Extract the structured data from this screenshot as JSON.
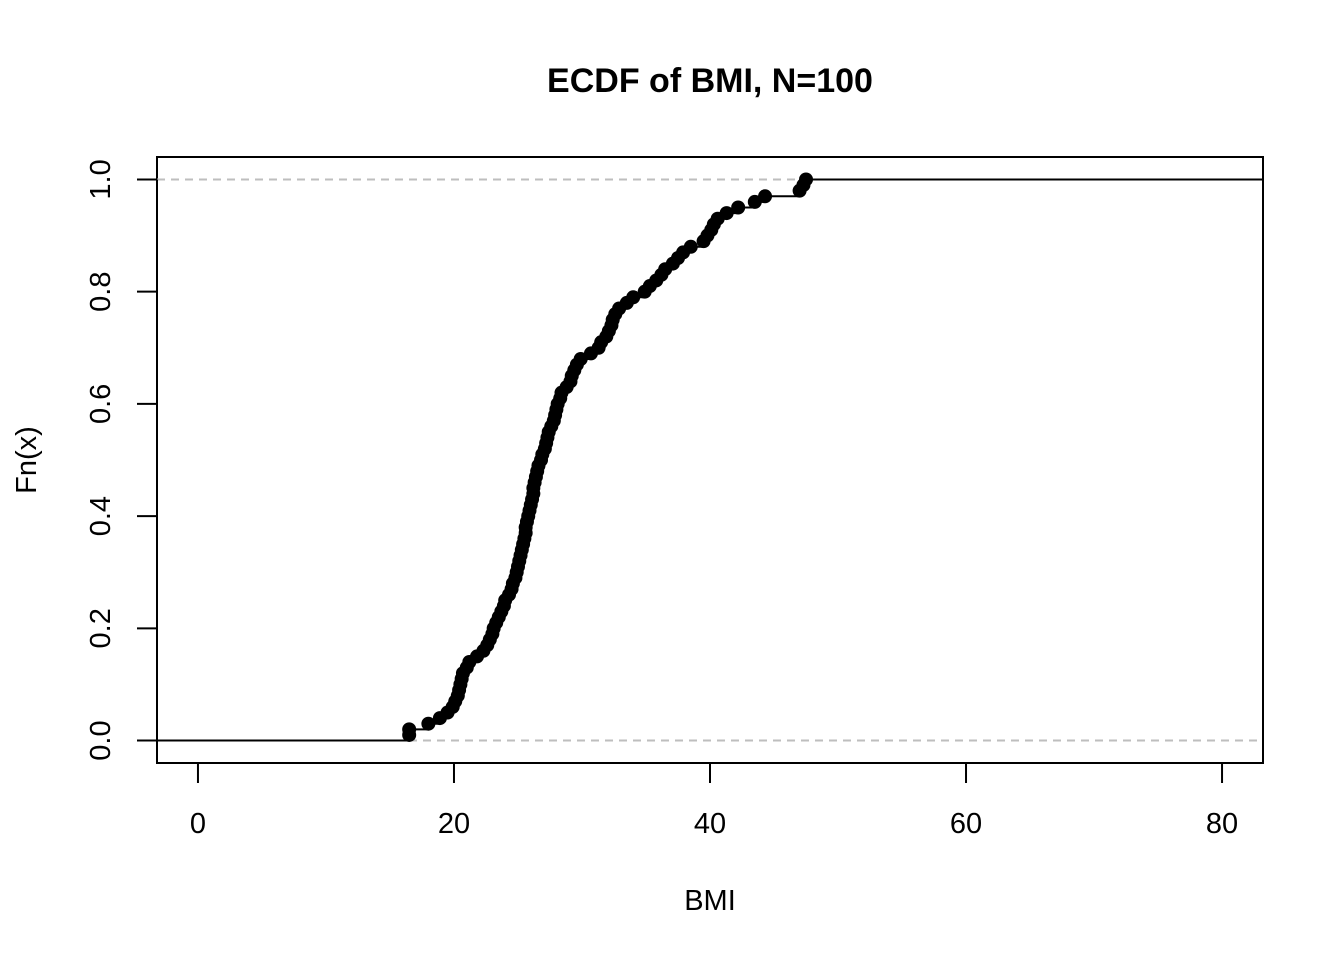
{
  "chart_data": {
    "type": "line",
    "subtype": "ecdf-step",
    "title": "ECDF of BMI, N=100",
    "xlabel": "BMI",
    "ylabel": "Fn(x)",
    "xlim": [
      -3.2,
      83.2
    ],
    "ylim": [
      -0.04,
      1.04
    ],
    "x_ticks": [
      0,
      20,
      40,
      60,
      80
    ],
    "x_tick_labels": [
      "0",
      "20",
      "40",
      "60",
      "80"
    ],
    "y_ticks": [
      0.0,
      0.2,
      0.4,
      0.6,
      0.8,
      1.0
    ],
    "y_tick_labels": [
      "0.0",
      "0.2",
      "0.4",
      "0.6",
      "0.8",
      "1.0"
    ],
    "reference_lines": [
      0,
      1
    ],
    "grid": false,
    "legend": "none",
    "colors": {
      "line": "#000000",
      "points": "#000000",
      "reference": "#bebebe"
    },
    "n": 100,
    "x": [
      16.5,
      16.5,
      18.0,
      18.9,
      19.5,
      19.9,
      20.1,
      20.3,
      20.4,
      20.5,
      20.6,
      20.7,
      21.0,
      21.2,
      21.8,
      22.3,
      22.6,
      22.8,
      23.0,
      23.1,
      23.3,
      23.5,
      23.7,
      23.9,
      24.0,
      24.3,
      24.5,
      24.6,
      24.8,
      24.9,
      25.0,
      25.1,
      25.2,
      25.3,
      25.4,
      25.5,
      25.6,
      25.6,
      25.7,
      25.8,
      25.9,
      26.0,
      26.1,
      26.2,
      26.2,
      26.3,
      26.4,
      26.5,
      26.6,
      26.8,
      26.9,
      27.1,
      27.2,
      27.3,
      27.4,
      27.6,
      27.8,
      27.9,
      28.0,
      28.1,
      28.3,
      28.4,
      28.8,
      29.1,
      29.2,
      29.4,
      29.6,
      29.9,
      30.7,
      31.3,
      31.5,
      31.9,
      32.1,
      32.3,
      32.4,
      32.6,
      32.9,
      33.5,
      34.0,
      34.9,
      35.3,
      35.8,
      36.2,
      36.5,
      37.1,
      37.5,
      37.9,
      38.5,
      39.5,
      39.8,
      40.1,
      40.3,
      40.6,
      41.3,
      42.2,
      43.5,
      44.3,
      47.0,
      47.3,
      47.5
    ],
    "y": [
      0.01,
      0.02,
      0.03,
      0.04,
      0.05,
      0.06,
      0.07,
      0.08,
      0.09,
      0.1,
      0.11,
      0.12,
      0.13,
      0.14,
      0.15,
      0.16,
      0.17,
      0.18,
      0.19,
      0.2,
      0.21,
      0.22,
      0.23,
      0.24,
      0.25,
      0.26,
      0.27,
      0.28,
      0.29,
      0.3,
      0.31,
      0.32,
      0.33,
      0.34,
      0.35,
      0.36,
      0.37,
      0.38,
      0.39,
      0.4,
      0.41,
      0.42,
      0.43,
      0.44,
      0.45,
      0.46,
      0.47,
      0.48,
      0.49,
      0.5,
      0.51,
      0.52,
      0.53,
      0.54,
      0.55,
      0.56,
      0.57,
      0.58,
      0.59,
      0.6,
      0.61,
      0.62,
      0.63,
      0.64,
      0.65,
      0.66,
      0.67,
      0.68,
      0.69,
      0.7,
      0.71,
      0.72,
      0.73,
      0.74,
      0.75,
      0.76,
      0.77,
      0.78,
      0.79,
      0.8,
      0.81,
      0.82,
      0.83,
      0.84,
      0.85,
      0.86,
      0.87,
      0.88,
      0.89,
      0.9,
      0.91,
      0.92,
      0.93,
      0.94,
      0.95,
      0.96,
      0.97,
      0.98,
      0.99,
      1.0
    ]
  }
}
